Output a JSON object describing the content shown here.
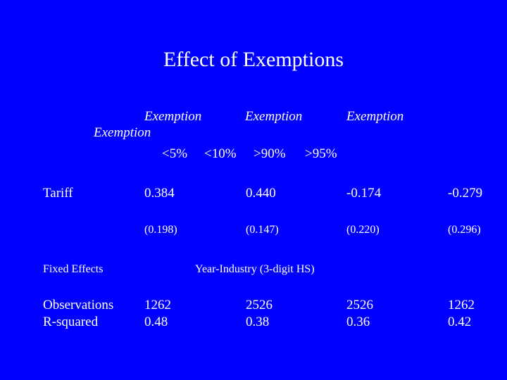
{
  "slide": {
    "title": "Effect of Exemptions",
    "headers": {
      "exemption_1": "Exemption",
      "exemption_2": "Exemption",
      "exemption_3": "Exemption",
      "exemption_4": "Exemption",
      "pct_1": "<5%",
      "pct_2": "<10%",
      "pct_3": ">90%",
      "pct_4": ">95%"
    },
    "rows": {
      "tariff": {
        "label": "Tariff",
        "coef": [
          "0.384",
          "0.440",
          "-0.174",
          "-0.279"
        ],
        "se": [
          "(0.198)",
          "(0.147)",
          "(0.220)",
          "(0.296)"
        ]
      },
      "fixed_effects": {
        "label": "Fixed Effects",
        "value": "Year-Industry (3-digit HS)"
      },
      "observations": {
        "label": "Observations",
        "values": [
          "1262",
          "2526",
          "2526",
          "1262"
        ]
      },
      "r_squared": {
        "label": "R-squared",
        "values": [
          "0.48",
          "0.38",
          "0.36",
          "0.42"
        ]
      }
    }
  },
  "colors": {
    "background": "#0000FF",
    "text": "#FFFFFF"
  }
}
